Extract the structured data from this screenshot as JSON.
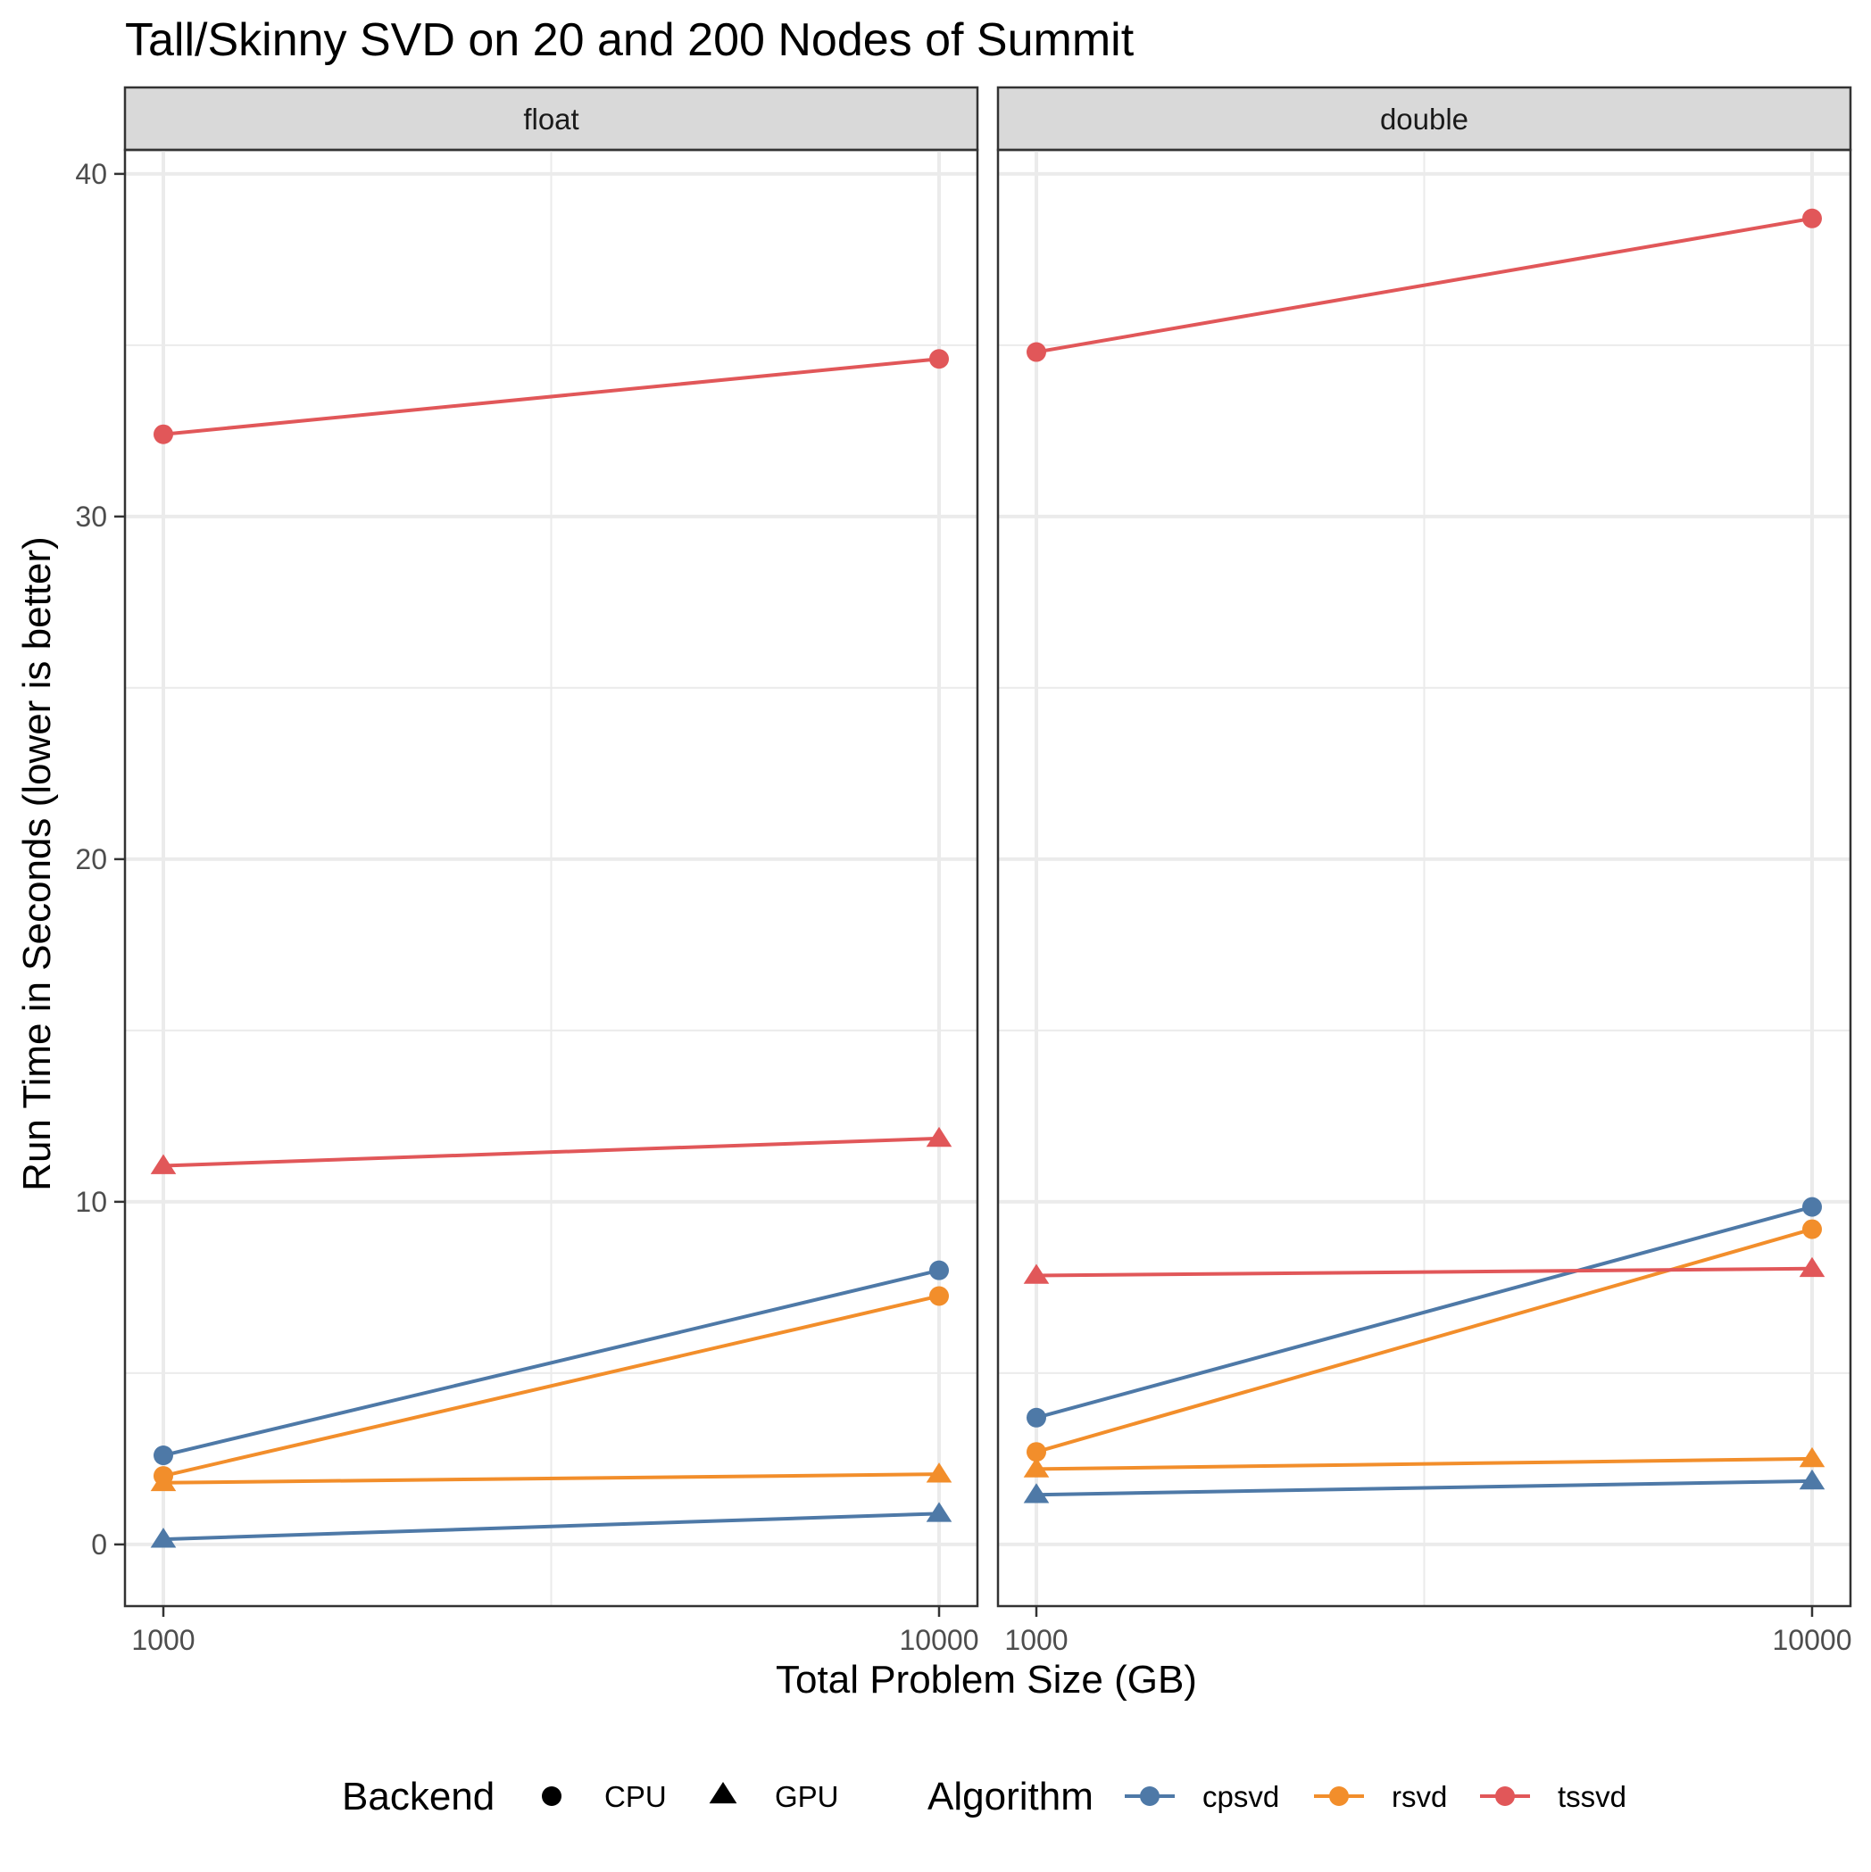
{
  "chart_data": {
    "type": "line",
    "title": "Tall/Skinny SVD on 20 and 200 Nodes of Summit",
    "xlabel": "Total Problem Size (GB)",
    "ylabel": "Run Time in Seconds (lower is better)",
    "x_scale": "log10",
    "x_ticks": [
      "1000",
      "10000"
    ],
    "x": [
      1000,
      10000
    ],
    "ylim": [
      -1.8,
      40.7
    ],
    "y_ticks": [
      "0",
      "10",
      "20",
      "30",
      "40"
    ],
    "grid": true,
    "legend_position": "bottom",
    "facets": [
      {
        "label": "float",
        "series": [
          {
            "algorithm": "cpsvd",
            "backend": "CPU",
            "values": [
              2.6,
              8.0
            ]
          },
          {
            "algorithm": "cpsvd",
            "backend": "GPU",
            "values": [
              0.15,
              0.9
            ]
          },
          {
            "algorithm": "rsvd",
            "backend": "CPU",
            "values": [
              2.0,
              7.25
            ]
          },
          {
            "algorithm": "rsvd",
            "backend": "GPU",
            "values": [
              1.8,
              2.05
            ]
          },
          {
            "algorithm": "tssvd",
            "backend": "CPU",
            "values": [
              32.4,
              34.6
            ]
          },
          {
            "algorithm": "tssvd",
            "backend": "GPU",
            "values": [
              11.05,
              11.85
            ]
          }
        ]
      },
      {
        "label": "double",
        "series": [
          {
            "algorithm": "cpsvd",
            "backend": "CPU",
            "values": [
              3.7,
              9.85
            ]
          },
          {
            "algorithm": "cpsvd",
            "backend": "GPU",
            "values": [
              1.45,
              1.85
            ]
          },
          {
            "algorithm": "rsvd",
            "backend": "CPU",
            "values": [
              2.7,
              9.2
            ]
          },
          {
            "algorithm": "rsvd",
            "backend": "GPU",
            "values": [
              2.2,
              2.5
            ]
          },
          {
            "algorithm": "tssvd",
            "backend": "CPU",
            "values": [
              34.8,
              38.7
            ]
          },
          {
            "algorithm": "tssvd",
            "backend": "GPU",
            "values": [
              7.85,
              8.05
            ]
          }
        ]
      }
    ],
    "legend": {
      "backend": {
        "title": "Backend",
        "entries": [
          {
            "label": "CPU",
            "shape": "circle"
          },
          {
            "label": "GPU",
            "shape": "triangle"
          }
        ]
      },
      "algorithm": {
        "title": "Algorithm",
        "entries": [
          {
            "label": "cpsvd",
            "color": "#4e79a7"
          },
          {
            "label": "rsvd",
            "color": "#f28e2b"
          },
          {
            "label": "tssvd",
            "color": "#e15759"
          }
        ]
      }
    }
  }
}
